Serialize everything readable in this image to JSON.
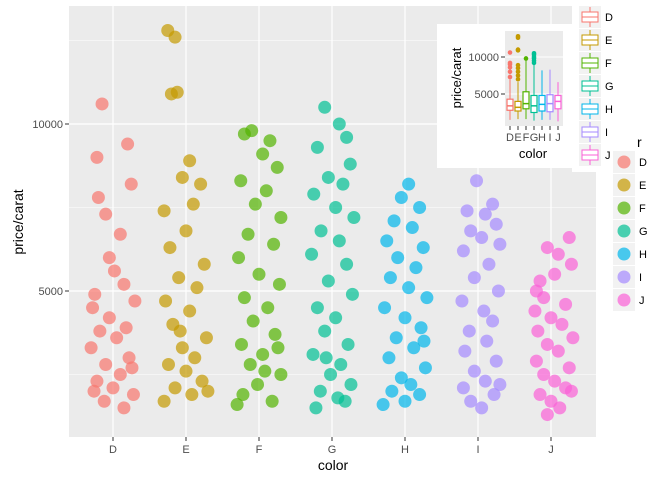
{
  "chart_data": [
    {
      "type": "scatter",
      "xlabel": "color",
      "ylabel": "price/carat",
      "categories": [
        "D",
        "E",
        "F",
        "G",
        "H",
        "I",
        "J"
      ],
      "yticks": [
        "5000",
        "10000"
      ],
      "ylim": [
        630,
        13530
      ],
      "grid": true,
      "legend": {
        "title": "color",
        "position": "right",
        "entries": [
          "D",
          "E",
          "F",
          "G",
          "H",
          "I",
          "J"
        ]
      },
      "colors": [
        "#F8766D",
        "#C49A00",
        "#53B400",
        "#00C094",
        "#00B6EB",
        "#A58AFF",
        "#FB61D7"
      ],
      "series": [
        {
          "name": "D",
          "points": [
            [
              0.72,
              4500
            ],
            [
              0.78,
              9000
            ],
            [
              0.85,
              10600
            ],
            [
              1.2,
              9400
            ],
            [
              1.25,
              8200
            ],
            [
              0.8,
              7800
            ],
            [
              0.9,
              7300
            ],
            [
              1.1,
              6700
            ],
            [
              0.95,
              6000
            ],
            [
              1.15,
              5200
            ],
            [
              0.75,
              4900
            ],
            [
              1.3,
              4700
            ],
            [
              0.82,
              3800
            ],
            [
              1.05,
              3600
            ],
            [
              0.7,
              3300
            ],
            [
              1.22,
              3000
            ],
            [
              0.9,
              2800
            ],
            [
              1.1,
              2500
            ],
            [
              0.78,
              2300
            ],
            [
              1.0,
              2100
            ],
            [
              1.28,
              1900
            ],
            [
              0.88,
              1700
            ],
            [
              1.15,
              1500
            ],
            [
              0.95,
              4200
            ],
            [
              1.18,
              3900
            ],
            [
              0.74,
              2000
            ],
            [
              1.02,
              5600
            ],
            [
              1.26,
              2700
            ]
          ]
        },
        {
          "name": "E",
          "points": [
            [
              1.75,
              12800
            ],
            [
              1.85,
              12600
            ],
            [
              1.8,
              10900
            ],
            [
              1.88,
              10950
            ],
            [
              2.05,
              8900
            ],
            [
              1.95,
              8400
            ],
            [
              2.2,
              8200
            ],
            [
              2.1,
              7600
            ],
            [
              1.7,
              7400
            ],
            [
              2.0,
              6800
            ],
            [
              1.78,
              6300
            ],
            [
              2.25,
              5800
            ],
            [
              1.9,
              5400
            ],
            [
              2.15,
              5100
            ],
            [
              1.72,
              4700
            ],
            [
              2.05,
              4400
            ],
            [
              1.82,
              4000
            ],
            [
              2.28,
              3600
            ],
            [
              1.95,
              3300
            ],
            [
              2.12,
              3000
            ],
            [
              1.76,
              2800
            ],
            [
              2.0,
              2600
            ],
            [
              2.22,
              2300
            ],
            [
              1.85,
              2100
            ],
            [
              2.08,
              1900
            ],
            [
              1.7,
              1700
            ],
            [
              2.3,
              2000
            ],
            [
              1.92,
              3800
            ]
          ]
        },
        {
          "name": "F",
          "points": [
            [
              2.8,
              9700
            ],
            [
              2.9,
              9800
            ],
            [
              3.15,
              9500
            ],
            [
              3.05,
              9100
            ],
            [
              3.25,
              8700
            ],
            [
              2.75,
              8300
            ],
            [
              3.1,
              8000
            ],
            [
              2.95,
              7600
            ],
            [
              3.3,
              7200
            ],
            [
              2.85,
              6700
            ],
            [
              3.2,
              6400
            ],
            [
              2.72,
              6000
            ],
            [
              3.0,
              5500
            ],
            [
              3.28,
              5200
            ],
            [
              2.8,
              4800
            ],
            [
              3.12,
              4500
            ],
            [
              2.92,
              4100
            ],
            [
              3.22,
              3700
            ],
            [
              2.76,
              3400
            ],
            [
              3.05,
              3100
            ],
            [
              2.88,
              2800
            ],
            [
              3.3,
              2500
            ],
            [
              2.98,
              2200
            ],
            [
              2.78,
              1900
            ],
            [
              3.18,
              1700
            ],
            [
              2.7,
              1600
            ],
            [
              3.08,
              2600
            ],
            [
              3.26,
              3300
            ]
          ]
        },
        {
          "name": "G",
          "points": [
            [
              3.9,
              10500
            ],
            [
              4.1,
              10000
            ],
            [
              4.2,
              9600
            ],
            [
              3.8,
              9300
            ],
            [
              4.25,
              8800
            ],
            [
              3.95,
              8400
            ],
            [
              4.15,
              8200
            ],
            [
              3.75,
              7900
            ],
            [
              4.05,
              7500
            ],
            [
              4.3,
              7200
            ],
            [
              3.85,
              6800
            ],
            [
              4.1,
              6500
            ],
            [
              3.72,
              6100
            ],
            [
              4.2,
              5800
            ],
            [
              3.95,
              5300
            ],
            [
              4.28,
              4900
            ],
            [
              3.8,
              4500
            ],
            [
              4.05,
              4200
            ],
            [
              3.9,
              3800
            ],
            [
              4.22,
              3400
            ],
            [
              3.74,
              3100
            ],
            [
              4.12,
              2800
            ],
            [
              3.98,
              2500
            ],
            [
              4.26,
              2200
            ],
            [
              3.84,
              2000
            ],
            [
              4.08,
              1800
            ],
            [
              3.78,
              1500
            ],
            [
              4.18,
              1700
            ],
            [
              3.92,
              3000
            ]
          ]
        },
        {
          "name": "H",
          "points": [
            [
              5.05,
              8200
            ],
            [
              4.95,
              7800
            ],
            [
              5.2,
              7500
            ],
            [
              4.85,
              7100
            ],
            [
              5.1,
              6900
            ],
            [
              4.75,
              6500
            ],
            [
              5.25,
              6300
            ],
            [
              4.9,
              6000
            ],
            [
              5.15,
              5700
            ],
            [
              4.8,
              5400
            ],
            [
              5.05,
              5100
            ],
            [
              5.3,
              4800
            ],
            [
              4.72,
              4500
            ],
            [
              5.0,
              4200
            ],
            [
              5.22,
              3900
            ],
            [
              4.88,
              3600
            ],
            [
              5.12,
              3300
            ],
            [
              4.78,
              3000
            ],
            [
              5.28,
              2700
            ],
            [
              4.95,
              2400
            ],
            [
              5.08,
              2200
            ],
            [
              4.82,
              2000
            ],
            [
              5.2,
              1900
            ],
            [
              4.7,
              1600
            ],
            [
              5.0,
              1700
            ],
            [
              5.26,
              3500
            ]
          ]
        },
        {
          "name": "I",
          "points": [
            [
              5.98,
              8300
            ],
            [
              6.2,
              7600
            ],
            [
              6.1,
              7300
            ],
            [
              5.85,
              7400
            ],
            [
              6.25,
              7000
            ],
            [
              5.9,
              6800
            ],
            [
              6.05,
              6600
            ],
            [
              6.3,
              6400
            ],
            [
              5.8,
              6200
            ],
            [
              6.15,
              5800
            ],
            [
              5.95,
              5400
            ],
            [
              6.28,
              5000
            ],
            [
              5.78,
              4700
            ],
            [
              6.08,
              4400
            ],
            [
              6.2,
              4100
            ],
            [
              5.88,
              3800
            ],
            [
              6.12,
              3500
            ],
            [
              5.82,
              3200
            ],
            [
              6.25,
              2900
            ],
            [
              5.95,
              2600
            ],
            [
              6.1,
              2300
            ],
            [
              5.8,
              2100
            ],
            [
              6.22,
              1900
            ],
            [
              5.9,
              1700
            ],
            [
              6.05,
              1500
            ],
            [
              6.3,
              2200
            ]
          ]
        },
        {
          "name": "J",
          "points": [
            [
              6.8,
              5000
            ],
            [
              6.85,
              5300
            ],
            [
              6.95,
              6300
            ],
            [
              7.1,
              6100
            ],
            [
              7.25,
              6600
            ],
            [
              7.28,
              5800
            ],
            [
              7.05,
              5500
            ],
            [
              6.9,
              4800
            ],
            [
              7.2,
              4600
            ],
            [
              6.78,
              4400
            ],
            [
              7.0,
              4200
            ],
            [
              7.15,
              4000
            ],
            [
              6.82,
              3800
            ],
            [
              7.3,
              3600
            ],
            [
              6.95,
              3400
            ],
            [
              7.1,
              3200
            ],
            [
              6.8,
              2900
            ],
            [
              7.25,
              2700
            ],
            [
              6.9,
              2500
            ],
            [
              7.05,
              2300
            ],
            [
              7.2,
              2100
            ],
            [
              6.85,
              1900
            ],
            [
              7.0,
              1700
            ],
            [
              7.12,
              1500
            ],
            [
              6.95,
              1300
            ],
            [
              7.28,
              2000
            ]
          ]
        }
      ]
    },
    {
      "type": "box",
      "xlabel": "color",
      "ylabel": "price/carat",
      "categories": [
        "D",
        "E",
        "F",
        "G",
        "H",
        "I",
        "J"
      ],
      "yticks": [
        "5000",
        "10000"
      ],
      "legend": {
        "title": "color",
        "position": "right",
        "entries": [
          "D",
          "E",
          "F",
          "G",
          "H",
          "I",
          "J"
        ]
      },
      "boxes": [
        {
          "name": "D",
          "min": 1500,
          "q1": 2800,
          "median": 3400,
          "q3": 4300,
          "max": 7000,
          "outliers": [
            7300,
            8000,
            8600,
            9000,
            9200,
            10600
          ]
        },
        {
          "name": "E",
          "min": 1600,
          "q1": 2700,
          "median": 3200,
          "q3": 4000,
          "max": 6600,
          "outliers": [
            7000,
            7500,
            8000,
            8500,
            8900,
            10900,
            11000,
            12600,
            12800
          ]
        },
        {
          "name": "F",
          "min": 1600,
          "q1": 3000,
          "median": 3700,
          "q3": 5300,
          "max": 9800,
          "outliers": [
            9800
          ]
        },
        {
          "name": "G",
          "min": 1400,
          "q1": 2500,
          "median": 3400,
          "q3": 4800,
          "max": 9000,
          "outliers": [
            9200,
            9500,
            9800,
            10000,
            10300,
            10500
          ]
        },
        {
          "name": "H",
          "min": 1500,
          "q1": 2700,
          "median": 3600,
          "q3": 4800,
          "max": 8200,
          "outliers": []
        },
        {
          "name": "I",
          "min": 1500,
          "q1": 2600,
          "median": 3700,
          "q3": 4900,
          "max": 8300,
          "outliers": []
        },
        {
          "name": "J",
          "min": 1300,
          "q1": 3000,
          "median": 4000,
          "q3": 4800,
          "max": 6600,
          "outliers": []
        }
      ]
    }
  ]
}
